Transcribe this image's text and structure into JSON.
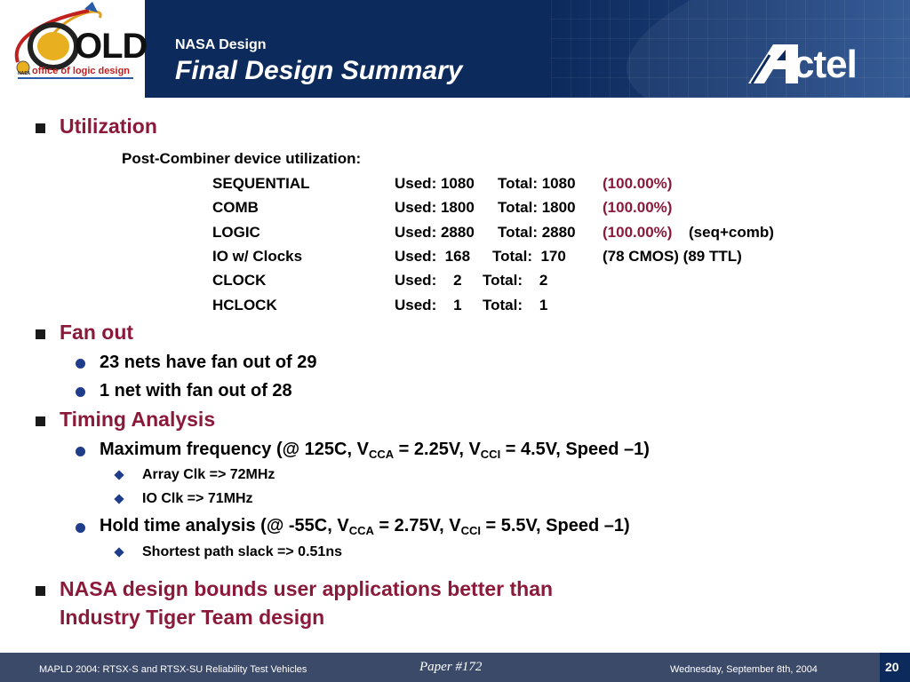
{
  "header": {
    "logo_text_main": "OLD",
    "logo_text_sub": "office of logic design",
    "logo_text_nasa": "NASA",
    "subtitle": "NASA Design",
    "title": "Final Design Summary",
    "brand": "Actel"
  },
  "utilization": {
    "heading": "Utilization",
    "intro": "Post-Combiner device utilization:",
    "rows": [
      {
        "name": "SEQUENTIAL",
        "used": "Used: 1080",
        "total": "Total: 1080",
        "pct": "(100.00%)",
        "extra": ""
      },
      {
        "name": "COMB",
        "used": "Used: 1800",
        "total": "Total: 1800",
        "pct": "(100.00%)",
        "extra": ""
      },
      {
        "name": "LOGIC",
        "used": "Used: 2880",
        "total": "Total: 2880",
        "pct": "(100.00%)",
        "extra": "(seq+comb)"
      },
      {
        "name": "IO w/ Clocks",
        "used": "Used:  168",
        "total": "Total:  170",
        "pct": "",
        "extra": "(78 CMOS) (89 TTL)"
      },
      {
        "name": "CLOCK",
        "used": "Used:    2",
        "total": "Total:    2",
        "pct": "",
        "extra": ""
      },
      {
        "name": "HCLOCK",
        "used": "Used:    1",
        "total": "Total:    1",
        "pct": "",
        "extra": ""
      }
    ]
  },
  "fanout": {
    "heading": "Fan out",
    "items": [
      "23 nets have fan out of 29",
      "1 net with fan out of 28"
    ]
  },
  "timing": {
    "heading": "Timing Analysis",
    "max_freq": {
      "p1": "Maximum frequency (@ 125C, V",
      "s1": "CCA",
      "p2": " = 2.25V, V",
      "s2": "CCI",
      "p3": " = 4.5V, Speed –1)"
    },
    "max_sub": [
      "Array Clk => 72MHz",
      "IO Clk => 71MHz"
    ],
    "hold": {
      "p1": "Hold time analysis (@ -55C, V",
      "s1": "CCA",
      "p2": " = 2.75V, V",
      "s2": "CCI",
      "p3": " = 5.5V, Speed –1)"
    },
    "hold_sub": [
      "Shortest path slack => 0.51ns"
    ]
  },
  "conclusion": {
    "line1": "NASA design bounds user applications better than",
    "line2": "Industry Tiger Team design"
  },
  "footer": {
    "left": "MAPLD 2004: RTSX-S and RTSX-SU Reliability Test Vehicles",
    "center": "Paper #172",
    "right": "Wednesday, September 8th, 2004",
    "page": "20"
  },
  "colors": {
    "header_bg": "#0d2a5c",
    "heading": "#8b1a3a",
    "bullet": "#1f3d8a",
    "footer_bg": "#3c4a6a"
  }
}
